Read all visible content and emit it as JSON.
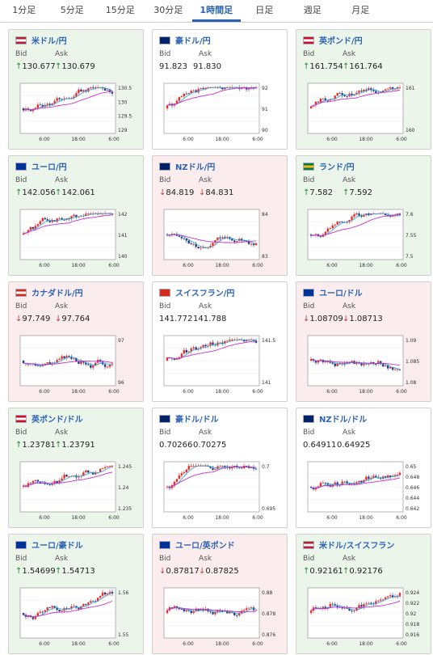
{
  "tabs": [
    "1分足",
    "5分足",
    "15分足",
    "30分足",
    "1時間足",
    "日足",
    "週足",
    "月足"
  ],
  "active_tab": 4,
  "labels": {
    "bid": "Bid",
    "ask": "Ask"
  },
  "cards": [
    {
      "pair": "米ドル/円",
      "flag": "us",
      "bg": "up",
      "dir": "up",
      "bid": "130.677",
      "ask": "130.679",
      "yticks": [
        "130.5",
        "130",
        "129.5",
        "129"
      ],
      "xticks": [
        "6:00",
        "18:00",
        "6:00"
      ]
    },
    {
      "pair": "豪ドル/円",
      "flag": "au",
      "bg": "flat",
      "dir": "none",
      "bid": "91.823",
      "ask": "91.830",
      "yticks": [
        "92",
        "91",
        "90"
      ],
      "xticks": [
        "6:00",
        "18:00",
        "6:00"
      ]
    },
    {
      "pair": "英ポンド/円",
      "flag": "uk",
      "bg": "up",
      "dir": "up",
      "bid": "161.754",
      "ask": "161.764",
      "yticks": [
        "161",
        "160"
      ],
      "xticks": [
        "6:00",
        "18:00",
        "6:00"
      ]
    },
    {
      "pair": "ユーロ/円",
      "flag": "eu",
      "bg": "up",
      "dir": "up",
      "bid": "142.056",
      "ask": "142.061",
      "yticks": [
        "142",
        "141",
        "140"
      ],
      "xticks": [
        "6:00",
        "18:00",
        "6:00"
      ]
    },
    {
      "pair": "NZドル/円",
      "flag": "nz",
      "bg": "down",
      "dir": "down",
      "bid": "84.819",
      "ask": "84.831",
      "yticks": [
        "84",
        "83"
      ],
      "xticks": [
        "6:00",
        "18:00",
        "6:00"
      ]
    },
    {
      "pair": "ランド/円",
      "flag": "za",
      "bg": "up",
      "dir": "up",
      "bid": "7.582",
      "ask": "7.592",
      "yticks": [
        "7.6",
        "7.55",
        "7.5"
      ],
      "xticks": [
        "6:00",
        "18:00",
        "6:00"
      ]
    },
    {
      "pair": "カナダドル/円",
      "flag": "ca",
      "bg": "down",
      "dir": "down",
      "bid": "97.749",
      "ask": "97.764",
      "yticks": [
        "97",
        "96"
      ],
      "xticks": [
        "6:00",
        "18:00",
        "6:00"
      ]
    },
    {
      "pair": "スイスフラン/円",
      "flag": "ch",
      "bg": "flat",
      "dir": "none",
      "bid": "141.772",
      "ask": "141.788",
      "yticks": [
        "141.5",
        "141"
      ],
      "xticks": [
        "6:00",
        "18:00",
        "6:00"
      ]
    },
    {
      "pair": "ユーロ/ドル",
      "flag": "eu",
      "bg": "down",
      "dir": "down",
      "bid": "1.08709",
      "ask": "1.08713",
      "yticks": [
        "1.09",
        "1.085",
        "1.08"
      ],
      "xticks": [
        "6:00",
        "18:00",
        "6:00"
      ]
    },
    {
      "pair": "英ポンド/ドル",
      "flag": "uk",
      "bg": "up",
      "dir": "up",
      "bid": "1.23781",
      "ask": "1.23791",
      "yticks": [
        "1.245",
        "1.24",
        "1.235"
      ],
      "xticks": [
        "6:00",
        "18:00",
        "6:00"
      ]
    },
    {
      "pair": "豪ドル/ドル",
      "flag": "au",
      "bg": "flat",
      "dir": "none",
      "bid": "0.70266",
      "ask": "0.70275",
      "yticks": [
        "0.7",
        "0.695"
      ],
      "xticks": [
        "6:00",
        "18:00",
        "6:00"
      ]
    },
    {
      "pair": "NZドル/ドル",
      "flag": "nz",
      "bg": "flat",
      "dir": "none",
      "bid": "0.64911",
      "ask": "0.64925",
      "yticks": [
        "0.65",
        "0.648",
        "0.646",
        "0.644",
        "0.642"
      ],
      "xticks": [
        "6:00",
        "18:00",
        "6:00"
      ]
    },
    {
      "pair": "ユーロ/豪ドル",
      "flag": "eu",
      "bg": "up",
      "dir": "up",
      "bid": "1.54699",
      "ask": "1.54713",
      "yticks": [
        "1.56",
        "1.55"
      ],
      "xticks": [
        "6:00",
        "18:00",
        "6:00"
      ]
    },
    {
      "pair": "ユーロ/英ポンド",
      "flag": "eu",
      "bg": "down",
      "dir": "down",
      "bid": "0.87817",
      "ask": "0.87825",
      "yticks": [
        "0.88",
        "0.878",
        "0.876"
      ],
      "xticks": [
        "6:00",
        "18:00",
        "6:00"
      ]
    },
    {
      "pair": "米ドル/スイスフラン",
      "flag": "us",
      "bg": "up",
      "dir": "up",
      "bid": "0.92161",
      "ask": "0.92176",
      "yticks": [
        "0.924",
        "0.922",
        "0.92",
        "0.918",
        "0.916"
      ],
      "xticks": [
        "6:00",
        "18:00",
        "6:00"
      ]
    }
  ],
  "colors": {
    "up_bg": "#ebf5ea",
    "down_bg": "#fbeced",
    "bull": "#e4302b",
    "bear": "#203b8a",
    "ma_short": "#3aa6d8",
    "ma_long": "#c431c9",
    "link": "#2b63b4"
  }
}
